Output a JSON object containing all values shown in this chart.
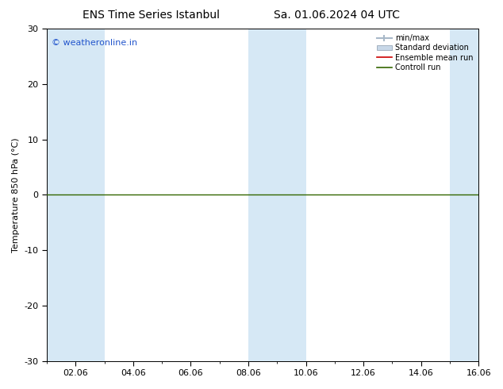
{
  "title_left": "ENS Time Series Istanbul",
  "title_right": "Sa. 01.06.2024 04 UTC",
  "ylabel": "Temperature 850 hPa (°C)",
  "ylim": [
    -30,
    30
  ],
  "yticks": [
    -30,
    -20,
    -10,
    0,
    10,
    20,
    30
  ],
  "blue_band_color": "#d6e8f5",
  "watermark_text": "© weatheronline.in",
  "watermark_color": "#2255cc",
  "control_run_color": "#336600",
  "ensemble_mean_color": "#cc0000",
  "std_dev_color": "#c8d8e8",
  "minmax_color": "#a8b8c8",
  "legend_entries": [
    "min/max",
    "Standard deviation",
    "Ensemble mean run",
    "Controll run"
  ],
  "bg_color": "#ffffff",
  "title_fontsize": 10,
  "axis_fontsize": 8,
  "watermark_fontsize": 8
}
